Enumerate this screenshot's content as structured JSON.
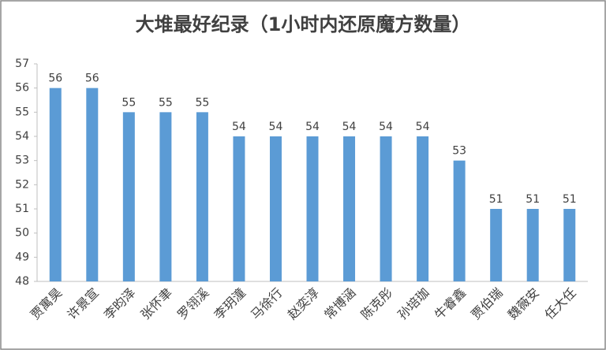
{
  "chart_data": {
    "type": "bar",
    "title": "大堆最好纪录（1小时内还原魔方数量）",
    "categories": [
      "贾寓昊",
      "许景宣",
      "李昀泽",
      "张怀聿",
      "罗翎溪",
      "李玥潼",
      "马徐行",
      "赵奕淳",
      "常博涵",
      "陈克彤",
      "孙培珈",
      "牛睿鑫",
      "贾伯瑞",
      "魏薇安",
      "任大任"
    ],
    "values": [
      56,
      56,
      55,
      55,
      55,
      54,
      54,
      54,
      54,
      54,
      54,
      53,
      51,
      51,
      51
    ],
    "color": "#5b9bd5",
    "ylim": [
      48,
      57
    ],
    "yticks": [
      48,
      49,
      50,
      51,
      52,
      53,
      54,
      55,
      56,
      57
    ],
    "grid": false
  }
}
